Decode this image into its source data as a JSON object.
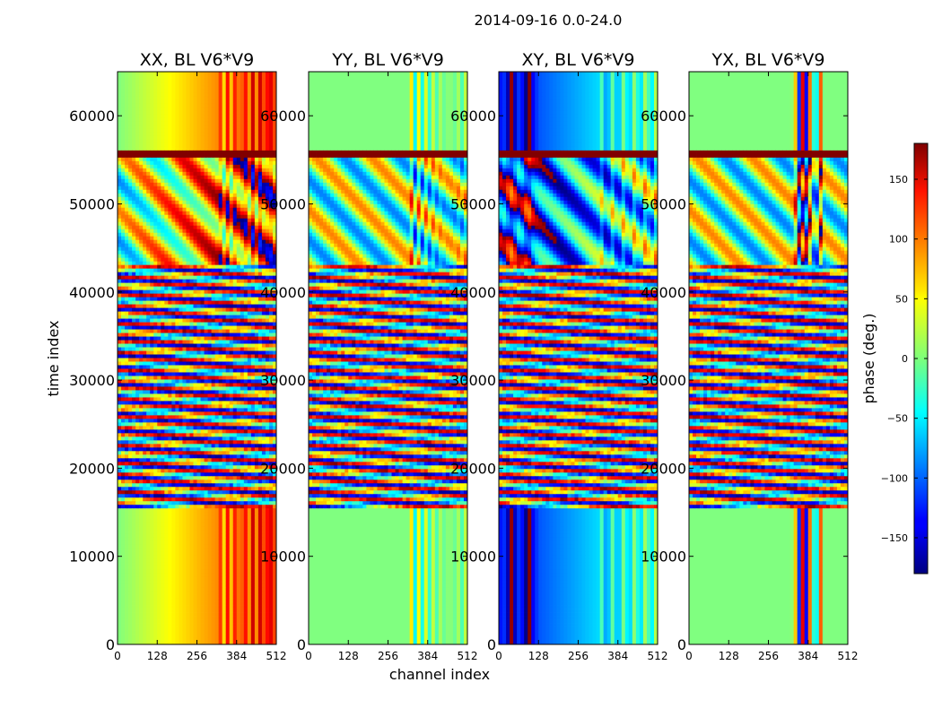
{
  "figure_title": "2014-09-16 0.0-24.0",
  "chart_data": {
    "type": "heatmap",
    "panels": [
      {
        "title": "XX, BL V6*V9",
        "scheme": "xx"
      },
      {
        "title": "YY, BL V6*V9",
        "scheme": "yy"
      },
      {
        "title": "XY, BL V6*V9",
        "scheme": "xy"
      },
      {
        "title": "YX, BL V6*V9",
        "scheme": "yx"
      }
    ],
    "xlabel": "channel index",
    "ylabel": "time index",
    "xlim": [
      0,
      512
    ],
    "ylim": [
      0,
      65000
    ],
    "xticks": [
      0,
      128,
      256,
      384,
      512
    ],
    "xtick_labels": [
      "0",
      "128",
      "256",
      "384",
      "512"
    ],
    "yticks": [
      0,
      10000,
      20000,
      30000,
      40000,
      50000,
      60000
    ],
    "ytick_labels": [
      "0",
      "10000",
      "20000",
      "30000",
      "40000",
      "50000",
      "60000"
    ],
    "colorbar": {
      "label": "phase (deg.)",
      "range": [
        -180,
        180
      ],
      "ticks": [
        150,
        100,
        50,
        0,
        -50,
        -100,
        -150
      ],
      "tick_labels": [
        "150",
        "100",
        "50",
        "0",
        "−50",
        "−100",
        "−150"
      ],
      "colormap": "jet"
    }
  }
}
